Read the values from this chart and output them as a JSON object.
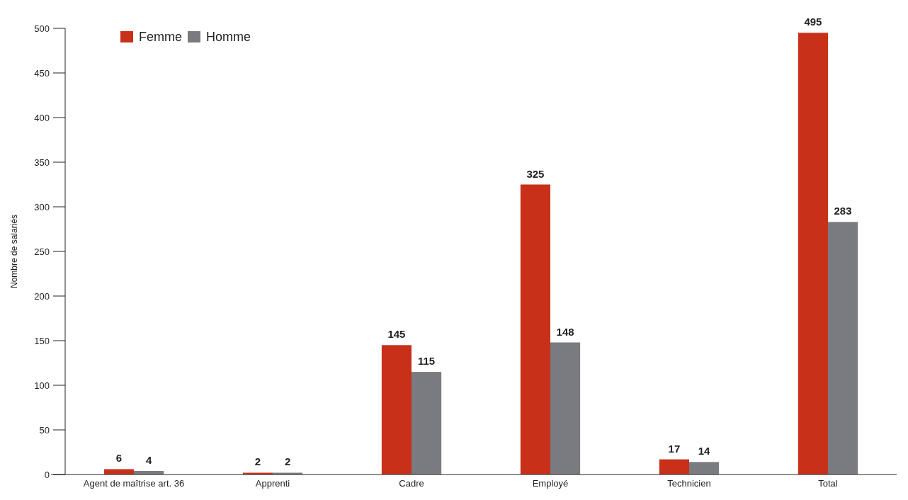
{
  "chart_data": {
    "type": "bar",
    "ylabel": "Nombre de salariés",
    "categories": [
      "Agent de maîtrise art. 36",
      "Apprenti",
      "Cadre",
      "Employé",
      "Technicien",
      "Total"
    ],
    "series": [
      {
        "name": "Femme",
        "color": "#c8301a",
        "values": [
          6,
          2,
          145,
          325,
          17,
          495
        ]
      },
      {
        "name": "Homme",
        "color": "#7a7b80",
        "values": [
          4,
          2,
          115,
          148,
          14,
          283
        ]
      }
    ],
    "ylim": [
      0,
      500
    ],
    "yticks": [
      0,
      50,
      100,
      150,
      200,
      250,
      300,
      350,
      400,
      450,
      500
    ],
    "grid": false,
    "legend": "top left",
    "data_labels": true
  }
}
